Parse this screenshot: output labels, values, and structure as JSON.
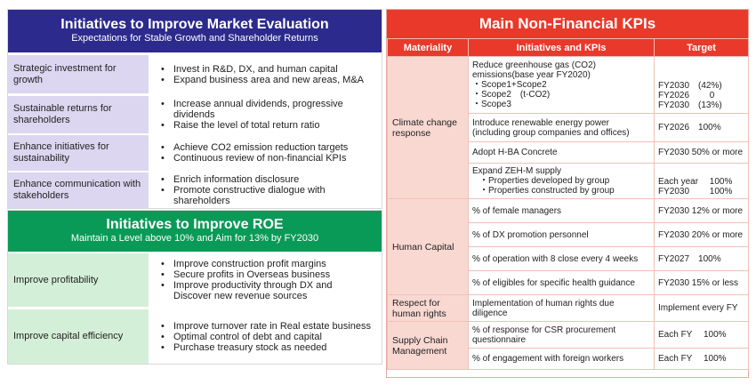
{
  "market": {
    "title": "Initiatives to Improve Market Evaluation",
    "subtitle": "Expectations for Stable Growth and Shareholder Returns",
    "rows": [
      {
        "label": "Strategic investment for growth",
        "bullets": [
          "Invest in R&D, DX, and human capital",
          "Expand business area and new areas, M&A"
        ]
      },
      {
        "label": "Sustainable returns for shareholders",
        "bullets": [
          " Increase annual dividends, progressive dividends",
          "Raise the level of total return ratio"
        ]
      },
      {
        "label": "Enhance initiatives for sustainability",
        "bullets": [
          "Achieve CO2 emission reduction targets",
          "Continuous review of non-financial KPIs"
        ]
      },
      {
        "label": "Enhance communication with stakeholders",
        "bullets": [
          "Enrich information disclosure",
          "Promote constructive dialogue with shareholders"
        ]
      }
    ]
  },
  "roe": {
    "title": "Initiatives to Improve ROE",
    "subtitle": "Maintain a Level above 10% and  Aim for 13% by FY2030",
    "rows": [
      {
        "label": "Improve profitability",
        "bullets": [
          "Improve construction profit margins",
          "Secure profits in Overseas business",
          "Improve productivity through DX and Discover new revenue sources"
        ]
      },
      {
        "label": "Improve capital efficiency",
        "bullets": [
          "Improve turnover rate in Real estate business",
          "Optimal control of debt and capital",
          "Purchase treasury stock as needed"
        ]
      }
    ]
  },
  "kpi": {
    "title": "Main Non-Financial KPIs",
    "headers": {
      "materiality": "Materiality",
      "initiatives": "Initiatives and KPIs",
      "target": "Target"
    },
    "climate": {
      "materiality": "Climate change response",
      "ghg": {
        "lines": [
          "Reduce greenhouse gas (CO2)",
          "emissions(base year FY2020)",
          "・Scope1+Scope2",
          "・Scope2　(t-CO2)",
          "・Scope3"
        ],
        "targets": [
          "FY2030　(42%)",
          "FY2026　　 0",
          "FY2030　(13%)"
        ]
      },
      "renewable": {
        "lines": [
          "Introduce renewable energy power",
          "(including group companies and offices)"
        ],
        "target": "FY2026　100%"
      },
      "hba": {
        "text": "Adopt H-BA Concrete",
        "target": "FY2030 50% or more"
      },
      "zeh": {
        "lines": [
          "Expand ZEH-M supply",
          "・Properties developed by group",
          "・Properties constructed by group"
        ],
        "targets": [
          "Each year　 100%",
          "FY2030　　 100%"
        ]
      }
    },
    "human": {
      "materiality": "Human Capital",
      "rows": [
        {
          "text": "% of female managers",
          "target": "FY2030 12% or more"
        },
        {
          "text": "% of DX promotion personnel",
          "target": "FY2030 20% or more"
        },
        {
          "text": "% of operation with 8 close every 4 weeks",
          "target": "FY2027　100%"
        },
        {
          "text": "% of eligibles for specific health guidance",
          "target": "FY2030 15% or less"
        }
      ]
    },
    "rights": {
      "materiality": "Respect for human rights",
      "lines": [
        "Implementation of human rights due",
        "diligence"
      ],
      "target": "Implement every FY"
    },
    "supply": {
      "materiality": "Supply Chain Management",
      "rows": [
        {
          "lines": [
            "% of response for CSR procurement",
            "questionnaire"
          ],
          "target": "Each FY　 100%"
        },
        {
          "lines": [
            "% of engagement with foreign workers"
          ],
          "target": "Each FY　 100%"
        }
      ]
    }
  }
}
